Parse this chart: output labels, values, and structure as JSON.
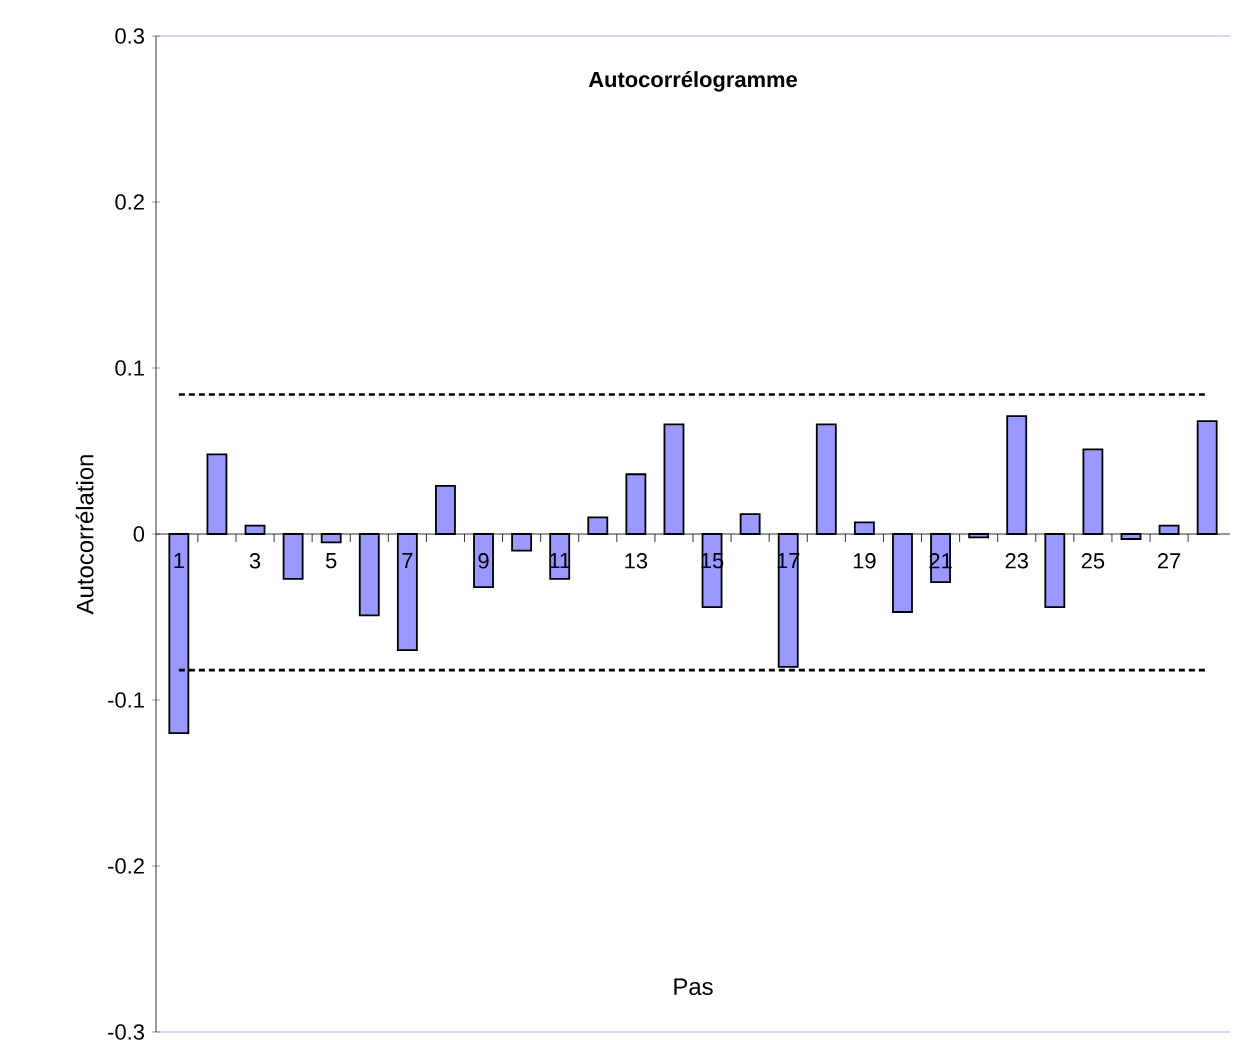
{
  "chart_data": {
    "type": "bar",
    "title": "Autocorrélogramme",
    "xlabel": "Pas",
    "ylabel": "Autocorrélation",
    "categories": [
      "1",
      null,
      "3",
      null,
      "5",
      null,
      "7",
      null,
      "9",
      null,
      "11",
      null,
      "13",
      null,
      "15",
      null,
      "17",
      null,
      "19",
      null,
      "21",
      null,
      "23",
      null,
      "25",
      null,
      "27",
      null
    ],
    "values": [
      -0.12,
      0.048,
      0.005,
      -0.027,
      -0.005,
      -0.049,
      -0.07,
      0.029,
      -0.032,
      -0.01,
      -0.027,
      0.01,
      0.036,
      0.066,
      -0.044,
      0.012,
      -0.08,
      0.066,
      0.007,
      -0.047,
      -0.029,
      -0.002,
      0.071,
      -0.044,
      0.051,
      -0.003,
      0.005,
      0.068
    ],
    "color": "#9999ff",
    "ylim": [
      -0.3,
      0.3
    ],
    "yticks": [
      -0.3,
      -0.2,
      -0.1,
      0,
      0.1,
      0.2,
      0.3
    ],
    "ref_lines": [
      {
        "axis": "y",
        "value": 0.084,
        "line_style": "dashed",
        "color": "#000000"
      },
      {
        "axis": "y",
        "value": -0.082,
        "line_style": "dashed",
        "color": "#000000"
      }
    ],
    "line_style": "solid"
  }
}
